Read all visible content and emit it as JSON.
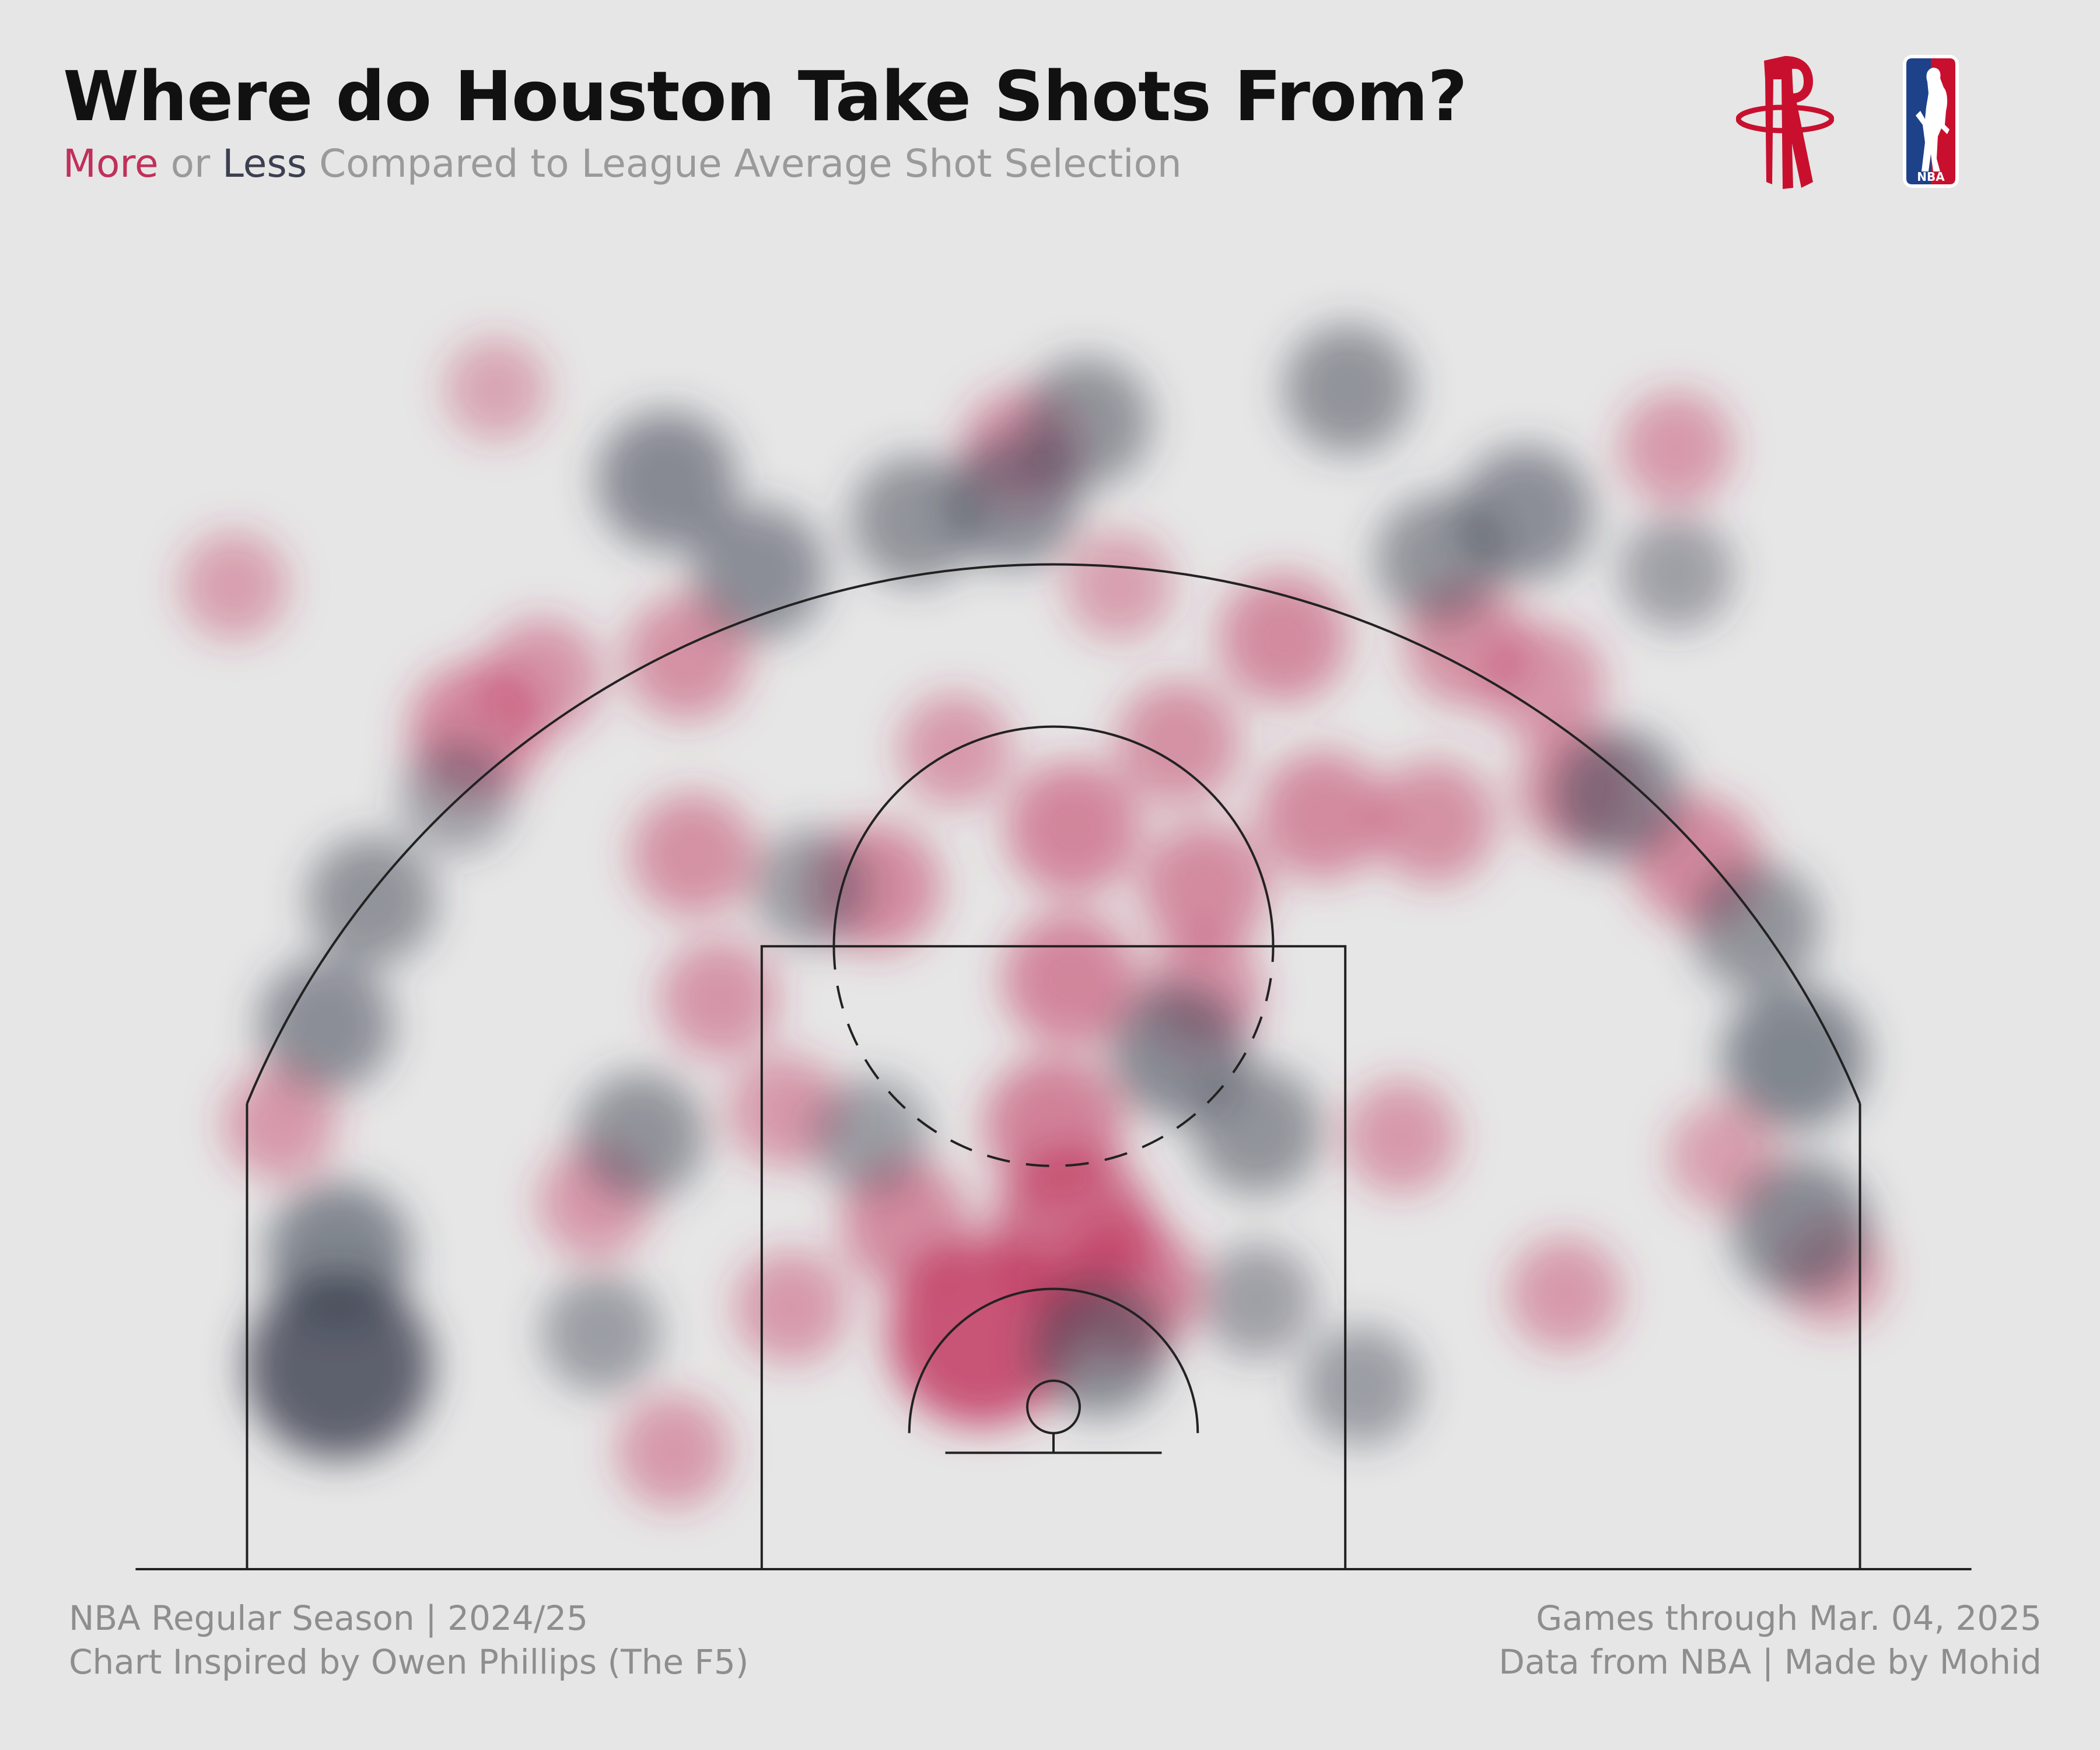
{
  "header": {
    "title": "Where do Houston Take Shots From?",
    "subtitle_more": "More",
    "subtitle_or": " or ",
    "subtitle_less": "Less",
    "subtitle_rest": " Compared to League Average Shot Selection"
  },
  "logos": {
    "team_logo": "rockets-logo-icon",
    "league_logo": "nba-logo-icon",
    "league_logo_text": "NBA"
  },
  "footer": {
    "left_line1": "NBA Regular Season | 2024/25",
    "left_line2": "Chart Inspired by Owen Phillips (The F5)",
    "right_line1": "Games through Mar. 04, 2025",
    "right_line2": "Data from NBA | Made by Mohid"
  },
  "colors": {
    "background": "#e6e6e6",
    "more": "#c0305a",
    "less": "#3b3f4f",
    "court_lines": "#222222",
    "muted_text": "#9a9a9a"
  },
  "chart_data": {
    "type": "heatmap",
    "title": "Where do Houston Take Shots From?",
    "subtitle": "More or Less Compared to League Average Shot Selection",
    "value_meaning": "shot frequency difference vs league average (positive = more, negative = less)",
    "x_range": [
      -25,
      25
    ],
    "y_range": [
      0,
      40
    ],
    "xlabel": "",
    "ylabel": "",
    "grid": false,
    "legend": "subtitle text",
    "blobs": [
      {
        "x": -2.2,
        "y": 7.2,
        "value": 1.0
      },
      {
        "x": 0.6,
        "y": 10.4,
        "value": 0.75
      },
      {
        "x": 2.2,
        "y": 8.6,
        "value": 0.6
      },
      {
        "x": -4.5,
        "y": 10.5,
        "value": 0.45
      },
      {
        "x": 0.0,
        "y": 13.5,
        "value": 0.55
      },
      {
        "x": 0.5,
        "y": 18.0,
        "value": 0.5
      },
      {
        "x": 0.6,
        "y": 22.6,
        "value": 0.5
      },
      {
        "x": 4.6,
        "y": 20.8,
        "value": 0.45
      },
      {
        "x": -5.4,
        "y": 20.8,
        "value": 0.45
      },
      {
        "x": -3.0,
        "y": 25.0,
        "value": 0.3
      },
      {
        "x": 3.8,
        "y": 25.2,
        "value": 0.4
      },
      {
        "x": 8.2,
        "y": 23.0,
        "value": 0.45
      },
      {
        "x": 11.6,
        "y": 22.8,
        "value": 0.4
      },
      {
        "x": 16.0,
        "y": 23.8,
        "value": 0.4
      },
      {
        "x": 19.6,
        "y": 21.6,
        "value": 0.45
      },
      {
        "x": 12.6,
        "y": 28.2,
        "value": 0.4
      },
      {
        "x": 7.0,
        "y": 28.4,
        "value": 0.45
      },
      {
        "x": 15.0,
        "y": 27.0,
        "value": 0.35
      },
      {
        "x": -17.6,
        "y": 25.6,
        "value": 0.5
      },
      {
        "x": -15.6,
        "y": 27.2,
        "value": 0.35
      },
      {
        "x": -11.0,
        "y": 21.8,
        "value": 0.4
      },
      {
        "x": -10.2,
        "y": 17.4,
        "value": 0.35
      },
      {
        "x": -8.2,
        "y": 14.0,
        "value": 0.3
      },
      {
        "x": -11.2,
        "y": 27.8,
        "value": 0.4
      },
      {
        "x": -1.0,
        "y": 34.2,
        "value": 0.35
      },
      {
        "x": 19.0,
        "y": 34.2,
        "value": 0.3
      },
      {
        "x": -8.0,
        "y": 8.0,
        "value": 0.3
      },
      {
        "x": -11.6,
        "y": 3.6,
        "value": 0.3
      },
      {
        "x": 10.6,
        "y": 13.2,
        "value": 0.3
      },
      {
        "x": 15.6,
        "y": 8.4,
        "value": 0.3
      },
      {
        "x": 20.4,
        "y": 12.6,
        "value": 0.25
      },
      {
        "x": 23.8,
        "y": 9.0,
        "value": 0.25
      },
      {
        "x": -23.6,
        "y": 13.6,
        "value": 0.3
      },
      {
        "x": -14.0,
        "y": 11.2,
        "value": 0.3
      },
      {
        "x": 4.6,
        "y": 17.6,
        "value": 0.35
      },
      {
        "x": -25.0,
        "y": 30.0,
        "value": 0.25
      },
      {
        "x": -17.0,
        "y": 36.0,
        "value": 0.2
      },
      {
        "x": 2.0,
        "y": 30.0,
        "value": 0.25
      },
      {
        "x": -21.8,
        "y": 6.2,
        "value": -1.0
      },
      {
        "x": -21.8,
        "y": 9.6,
        "value": -0.6
      },
      {
        "x": -22.2,
        "y": 16.6,
        "value": -0.5
      },
      {
        "x": -20.8,
        "y": 20.4,
        "value": -0.45
      },
      {
        "x": 22.8,
        "y": 10.4,
        "value": -0.55
      },
      {
        "x": 22.6,
        "y": 15.6,
        "value": -0.6
      },
      {
        "x": 21.4,
        "y": 19.6,
        "value": -0.45
      },
      {
        "x": 17.2,
        "y": 23.6,
        "value": -0.5
      },
      {
        "x": 3.8,
        "y": 15.8,
        "value": -0.55
      },
      {
        "x": 6.2,
        "y": 13.4,
        "value": -0.45
      },
      {
        "x": 1.4,
        "y": 6.8,
        "value": -0.55
      },
      {
        "x": -12.6,
        "y": 13.2,
        "value": -0.45
      },
      {
        "x": -5.6,
        "y": 13.2,
        "value": -0.35
      },
      {
        "x": -11.8,
        "y": 33.2,
        "value": -0.55
      },
      {
        "x": -9.0,
        "y": 30.4,
        "value": -0.5
      },
      {
        "x": -4.2,
        "y": 32.0,
        "value": -0.45
      },
      {
        "x": -1.2,
        "y": 32.6,
        "value": -0.5
      },
      {
        "x": 1.0,
        "y": 35.0,
        "value": -0.45
      },
      {
        "x": 11.8,
        "y": 30.8,
        "value": -0.45
      },
      {
        "x": 14.4,
        "y": 32.2,
        "value": -0.5
      },
      {
        "x": 9.0,
        "y": 36.0,
        "value": -0.45
      },
      {
        "x": -7.4,
        "y": 20.8,
        "value": -0.35
      },
      {
        "x": 9.4,
        "y": 5.6,
        "value": -0.35
      },
      {
        "x": 6.2,
        "y": 8.2,
        "value": -0.3
      },
      {
        "x": -13.8,
        "y": 7.2,
        "value": -0.35
      },
      {
        "x": -18.2,
        "y": 23.6,
        "value": -0.3
      },
      {
        "x": 19.0,
        "y": 30.4,
        "value": -0.3
      }
    ]
  }
}
